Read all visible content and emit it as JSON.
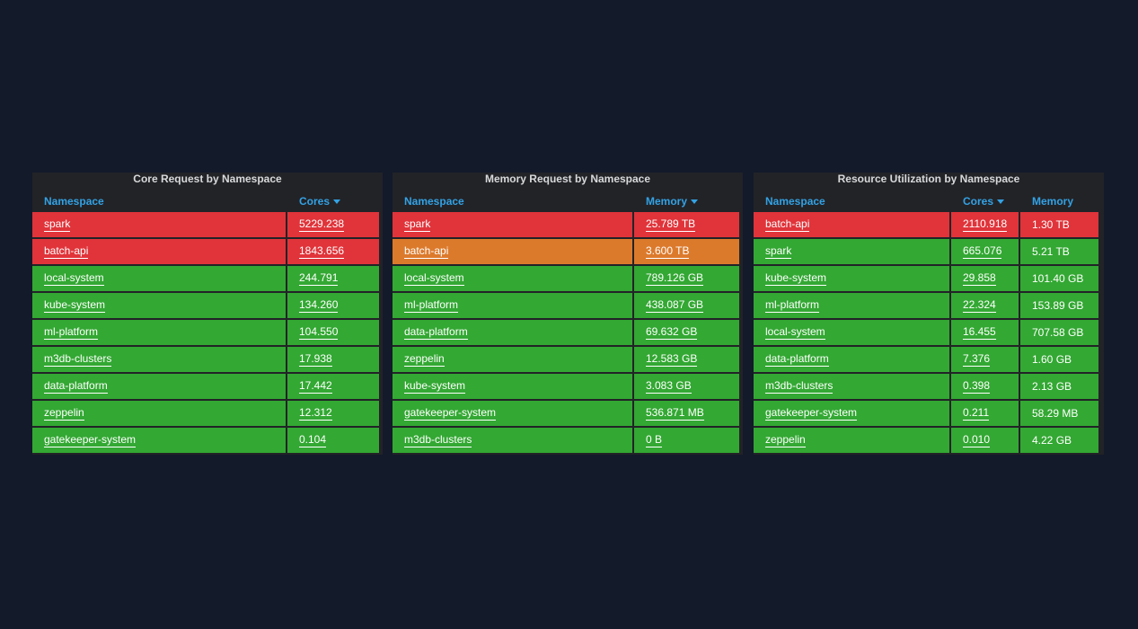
{
  "panels": [
    {
      "title": "Core Request by Namespace",
      "columns": [
        {
          "label": "Namespace",
          "sorted": false
        },
        {
          "label": "Cores",
          "sorted": true
        }
      ],
      "rows": [
        {
          "cells": [
            "spark",
            "5229.238"
          ],
          "colors": [
            "#e0343a",
            "#e0343a"
          ]
        },
        {
          "cells": [
            "batch-api",
            "1843.656"
          ],
          "colors": [
            "#e0343a",
            "#e0343a"
          ]
        },
        {
          "cells": [
            "local-system",
            "244.791"
          ],
          "colors": [
            "#33a833",
            "#33a833"
          ]
        },
        {
          "cells": [
            "kube-system",
            "134.260"
          ],
          "colors": [
            "#33a833",
            "#33a833"
          ]
        },
        {
          "cells": [
            "ml-platform",
            "104.550"
          ],
          "colors": [
            "#33a833",
            "#33a833"
          ]
        },
        {
          "cells": [
            "m3db-clusters",
            "17.938"
          ],
          "colors": [
            "#33a833",
            "#33a833"
          ]
        },
        {
          "cells": [
            "data-platform",
            "17.442"
          ],
          "colors": [
            "#33a833",
            "#33a833"
          ]
        },
        {
          "cells": [
            "zeppelin",
            "12.312"
          ],
          "colors": [
            "#33a833",
            "#33a833"
          ]
        },
        {
          "cells": [
            "gatekeeper-system",
            "0.104"
          ],
          "colors": [
            "#33a833",
            "#33a833"
          ]
        }
      ]
    },
    {
      "title": "Memory Request by Namespace",
      "columns": [
        {
          "label": "Namespace",
          "sorted": false
        },
        {
          "label": "Memory",
          "sorted": true
        }
      ],
      "rows": [
        {
          "cells": [
            "spark",
            "25.789 TB"
          ],
          "colors": [
            "#e0343a",
            "#e0343a"
          ]
        },
        {
          "cells": [
            "batch-api",
            "3.600 TB"
          ],
          "colors": [
            "#dc7a2c",
            "#dc7a2c"
          ]
        },
        {
          "cells": [
            "local-system",
            "789.126 GB"
          ],
          "colors": [
            "#33a833",
            "#33a833"
          ]
        },
        {
          "cells": [
            "ml-platform",
            "438.087 GB"
          ],
          "colors": [
            "#33a833",
            "#33a833"
          ]
        },
        {
          "cells": [
            "data-platform",
            "69.632 GB"
          ],
          "colors": [
            "#33a833",
            "#33a833"
          ]
        },
        {
          "cells": [
            "zeppelin",
            "12.583 GB"
          ],
          "colors": [
            "#33a833",
            "#33a833"
          ]
        },
        {
          "cells": [
            "kube-system",
            "3.083 GB"
          ],
          "colors": [
            "#33a833",
            "#33a833"
          ]
        },
        {
          "cells": [
            "gatekeeper-system",
            "536.871 MB"
          ],
          "colors": [
            "#33a833",
            "#33a833"
          ]
        },
        {
          "cells": [
            "m3db-clusters",
            "0 B"
          ],
          "colors": [
            "#33a833",
            "#33a833"
          ]
        }
      ]
    },
    {
      "title": "Resource Utilization by Namespace",
      "columns": [
        {
          "label": "Namespace",
          "sorted": false
        },
        {
          "label": "Cores",
          "sorted": true
        },
        {
          "label": "Memory",
          "sorted": false
        }
      ],
      "rows": [
        {
          "cells": [
            "batch-api",
            "2110.918",
            "1.30 TB"
          ],
          "colors": [
            "#e0343a",
            "#e0343a",
            "#e0343a"
          ]
        },
        {
          "cells": [
            "spark",
            "665.076",
            "5.21 TB"
          ],
          "colors": [
            "#33a833",
            "#33a833",
            "#33a833"
          ]
        },
        {
          "cells": [
            "kube-system",
            "29.858",
            "101.40 GB"
          ],
          "colors": [
            "#33a833",
            "#33a833",
            "#33a833"
          ]
        },
        {
          "cells": [
            "ml-platform",
            "22.324",
            "153.89 GB"
          ],
          "colors": [
            "#33a833",
            "#33a833",
            "#33a833"
          ]
        },
        {
          "cells": [
            "local-system",
            "16.455",
            "707.58 GB"
          ],
          "colors": [
            "#33a833",
            "#33a833",
            "#33a833"
          ]
        },
        {
          "cells": [
            "data-platform",
            "7.376",
            "1.60 GB"
          ],
          "colors": [
            "#33a833",
            "#33a833",
            "#33a833"
          ]
        },
        {
          "cells": [
            "m3db-clusters",
            "0.398",
            "2.13 GB"
          ],
          "colors": [
            "#33a833",
            "#33a833",
            "#33a833"
          ]
        },
        {
          "cells": [
            "gatekeeper-system",
            "0.211",
            "58.29 MB"
          ],
          "colors": [
            "#33a833",
            "#33a833",
            "#33a833"
          ]
        },
        {
          "cells": [
            "zeppelin",
            "0.010",
            "4.22 GB"
          ],
          "colors": [
            "#33a833",
            "#33a833",
            "#33a833"
          ]
        }
      ]
    }
  ],
  "theme": {
    "background": "#131a2a",
    "panel": "#222327",
    "header_text": "#33a2e5",
    "title_text": "#d8d9da"
  }
}
